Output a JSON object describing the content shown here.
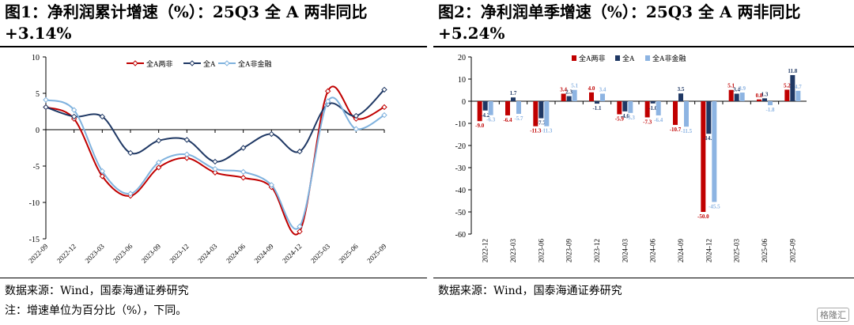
{
  "left": {
    "title_line1": "图1：净利润累计增速（%）：25Q3 全 A 两非同比",
    "title_line2": "+3.14%",
    "source": "数据来源：Wind，国泰海通证券研究",
    "note": "注：增速单位为百分比（%），下同。"
  },
  "right": {
    "title_line1": "图2：净利润单季增速（%）：25Q3 全 A 两非同比",
    "title_line2": "+5.24%",
    "source": "数据来源：Wind，国泰海通证券研究"
  },
  "watermark": "格隆汇",
  "chart_data": [
    {
      "type": "line",
      "x": [
        "2022-09",
        "2022-12",
        "2023-03",
        "2023-06",
        "2023-09",
        "2023-12",
        "2024-03",
        "2024-06",
        "2024-09",
        "2024-12",
        "2025-03",
        "2025-06",
        "2025-09"
      ],
      "series": [
        {
          "name": "全A两非",
          "color": "#C00000",
          "values": [
            3.1,
            1.5,
            -6.4,
            -9.1,
            -5.2,
            -3.9,
            -5.9,
            -6.6,
            -7.9,
            -14.0,
            5.3,
            1.5,
            3.1
          ]
        },
        {
          "name": "全A",
          "color": "#1F3864",
          "values": [
            3.1,
            1.8,
            1.8,
            -3.2,
            -1.5,
            -1.4,
            -4.4,
            -2.5,
            -0.6,
            -3.0,
            3.5,
            1.9,
            5.5
          ]
        },
        {
          "name": "全A非金融",
          "color": "#7FB2DE",
          "values": [
            4.1,
            2.7,
            -5.7,
            -8.8,
            -4.5,
            -3.4,
            -5.4,
            -5.8,
            -7.6,
            -13.3,
            3.9,
            0.1,
            2.0
          ]
        }
      ],
      "ylim": [
        -15,
        10
      ],
      "yticks": [
        -15,
        -10,
        -5,
        0,
        5,
        10
      ],
      "legend": "top"
    },
    {
      "type": "bar",
      "categories": [
        "2022-12",
        "2023-03",
        "2023-06",
        "2023-09",
        "2023-12",
        "2024-03",
        "2024-06",
        "2024-09",
        "2024-12",
        "2025-03",
        "2025-06",
        "2025-09"
      ],
      "series": [
        {
          "name": "全A两非",
          "color": "#C00000",
          "values": [
            -9.0,
            -6.4,
            -11.3,
            3.4,
            4.0,
            -5.9,
            -7.3,
            -10.7,
            -50.0,
            5.1,
            0.8,
            5.2
          ]
        },
        {
          "name": "全A",
          "color": "#1F3864",
          "values": [
            -4.2,
            1.7,
            -7.7,
            2.3,
            -1.1,
            -4.6,
            -1.0,
            3.5,
            -14.7,
            3.4,
            1.3,
            11.8
          ]
        },
        {
          "name": "全A非金融",
          "color": "#8DB4E2",
          "values": [
            -6.3,
            -5.7,
            -11.3,
            5.1,
            3.4,
            -5.3,
            -6.4,
            -11.5,
            -45.5,
            3.9,
            -1.8,
            4.7
          ]
        }
      ],
      "labels": [
        [
          "-9.0",
          "-6.4",
          "-11.3",
          "3.4",
          "4.0",
          "-5.9",
          "-7.3",
          "-10.7",
          "-50.0",
          "5.1",
          "0.8",
          "5.2"
        ],
        [
          "-4.2",
          "1.7",
          "-7.7",
          "2.3",
          "-1.1",
          "-4.6",
          "-1.0",
          "3.5",
          "-14.7",
          "3.4",
          "1.3",
          "11.8"
        ],
        [
          "-6.3",
          "-5.7",
          "-11.3",
          "5.1",
          "3.4",
          "-5.3",
          "-6.4",
          "-11.5",
          "-45.5",
          "3.9",
          "-1.8",
          "4.7"
        ]
      ],
      "ylim": [
        -60,
        20
      ],
      "yticks": [
        -60,
        -50,
        -40,
        -30,
        -20,
        -10,
        0,
        10,
        20
      ],
      "legend": "top"
    }
  ]
}
